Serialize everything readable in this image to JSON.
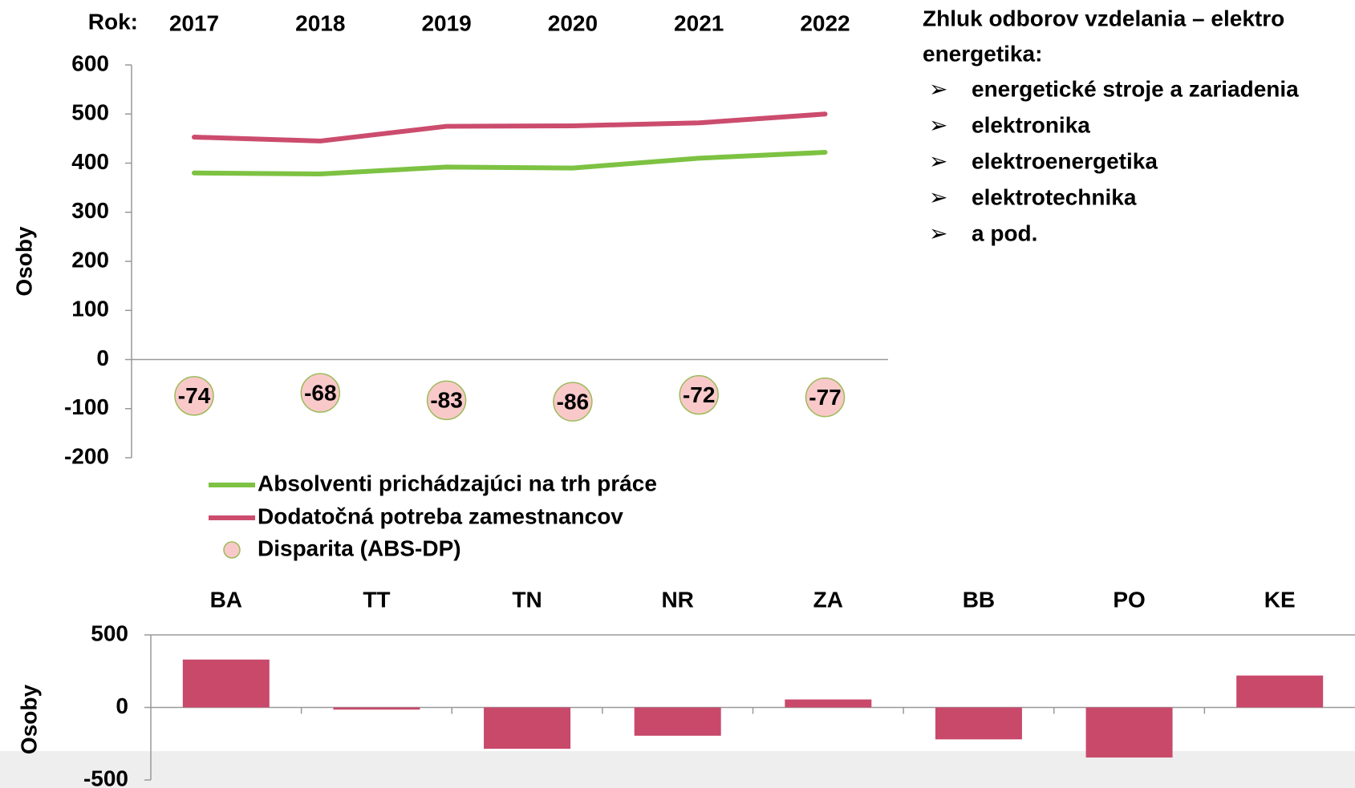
{
  "chart_data": [
    {
      "type": "line",
      "category_label": "Rok:",
      "categories": [
        "2017",
        "2018",
        "2019",
        "2020",
        "2021",
        "2022"
      ],
      "ylabel": "Osoby",
      "ylim": [
        -200,
        600
      ],
      "yticks": [
        -200,
        -100,
        0,
        100,
        200,
        300,
        400,
        500,
        600
      ],
      "grid": false,
      "series": [
        {
          "name": "Absolventi prichádzajúci na trh práce",
          "color": "#7dc242",
          "values": [
            380,
            378,
            392,
            390,
            410,
            422
          ]
        },
        {
          "name": "Dodatočná potreba zamestnancov",
          "color": "#cc4c6e",
          "values": [
            453,
            445,
            475,
            476,
            482,
            500
          ]
        },
        {
          "name": "Disparita (ABS-DP)",
          "type": "scatter",
          "color": "#f9c9c9",
          "edge_color": "#9bbb59",
          "values": [
            -74,
            -68,
            -83,
            -86,
            -72,
            -77
          ]
        }
      ]
    },
    {
      "type": "bar",
      "categories": [
        "BA",
        "TT",
        "TN",
        "NR",
        "ZA",
        "BB",
        "PO",
        "KE"
      ],
      "ylabel": "Osoby",
      "ylim": [
        -500,
        500
      ],
      "yticks": [
        -500,
        0,
        500
      ],
      "color": "#c9496b",
      "values": [
        330,
        -15,
        -285,
        -195,
        55,
        -220,
        -345,
        220
      ]
    }
  ],
  "side_panel": {
    "title_lines": [
      "Zhluk odborov vzdelania – elektro",
      "energetika:"
    ],
    "bullet": "➢",
    "items": [
      "energetické stroje a zariadenia",
      "elektronika",
      "elektroenergetika",
      "elektrotechnika",
      "a pod."
    ]
  }
}
